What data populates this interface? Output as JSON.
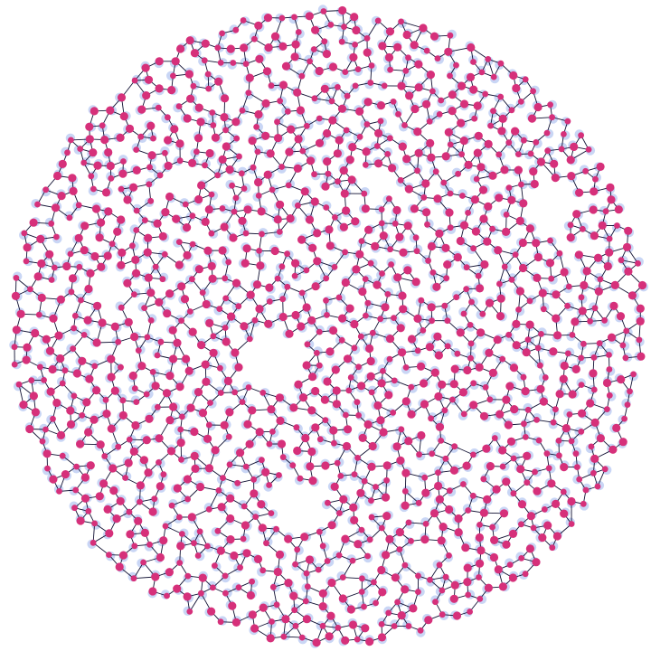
{
  "diagram": {
    "type": "network-graph",
    "shape": "disc",
    "labels": [],
    "legend": [],
    "colors": {
      "background": "#ffffff",
      "node_fill": "#d6307a",
      "node_halo": "#c9d6f5",
      "edge": "#111133"
    }
  }
}
